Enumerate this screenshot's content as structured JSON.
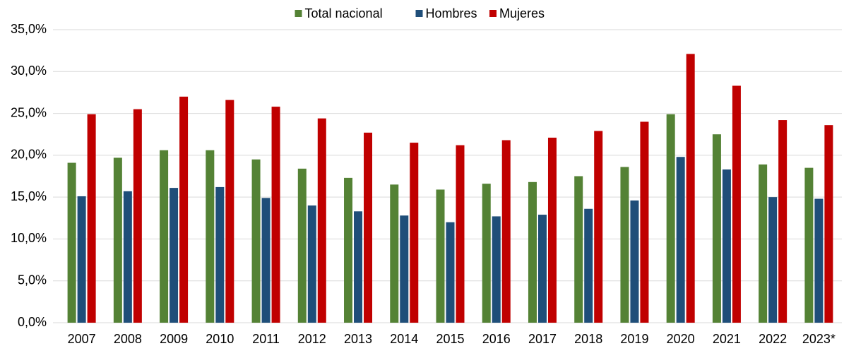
{
  "chart_data": {
    "type": "bar",
    "categories": [
      "2007",
      "2008",
      "2009",
      "2010",
      "2011",
      "2012",
      "2013",
      "2014",
      "2015",
      "2016",
      "2017",
      "2018",
      "2019",
      "2020",
      "2021",
      "2022",
      "2023*"
    ],
    "series": [
      {
        "name": "Total nacional",
        "color": "#548235",
        "values": [
          19.1,
          19.7,
          20.6,
          20.6,
          19.5,
          18.4,
          17.3,
          16.5,
          15.9,
          16.6,
          16.8,
          17.5,
          18.6,
          24.9,
          22.5,
          18.9,
          18.5
        ]
      },
      {
        "name": "Hombres",
        "color": "#1f4e79",
        "values": [
          15.1,
          15.7,
          16.1,
          16.2,
          14.9,
          14.0,
          13.3,
          12.8,
          12.0,
          12.7,
          12.9,
          13.6,
          14.6,
          19.8,
          18.3,
          15.0,
          14.8
        ]
      },
      {
        "name": "Mujeres",
        "color": "#c00000",
        "values": [
          24.9,
          25.5,
          27.0,
          26.6,
          25.8,
          24.4,
          22.7,
          21.5,
          21.2,
          21.8,
          22.1,
          22.9,
          24.0,
          32.1,
          28.3,
          24.2,
          23.6
        ]
      }
    ],
    "ylim": [
      0,
      35
    ],
    "yticks": [
      {
        "value": 0,
        "label": "0,0%"
      },
      {
        "value": 5,
        "label": "5,0%"
      },
      {
        "value": 10,
        "label": "10,0%"
      },
      {
        "value": 15,
        "label": "15,0%"
      },
      {
        "value": 20,
        "label": "20,0%"
      },
      {
        "value": 25,
        "label": "25,0%"
      },
      {
        "value": 30,
        "label": "30,0%"
      },
      {
        "value": 35,
        "label": "35,0%"
      }
    ],
    "grid": true,
    "legend": "top"
  }
}
